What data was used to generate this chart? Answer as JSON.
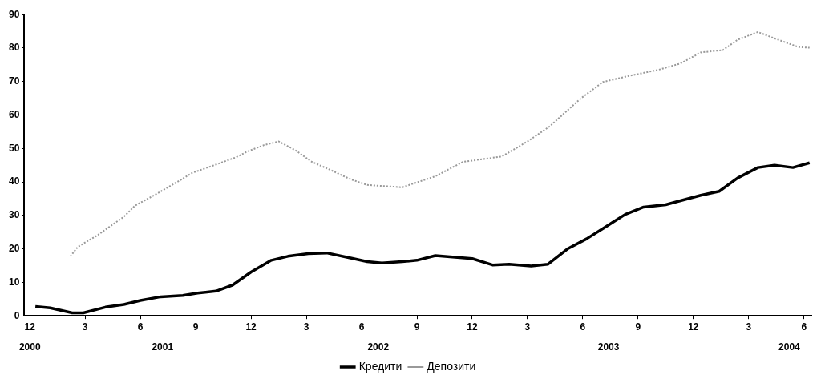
{
  "chart_data": {
    "type": "line",
    "xlim": [
      "2000-11-22",
      "2004-06-13"
    ],
    "ylim": [
      0,
      90
    ],
    "xticks": [
      {
        "value": "2000-12-01",
        "label": "12"
      },
      {
        "value": "2001-03-01",
        "label": "3"
      },
      {
        "value": "2001-06-01",
        "label": "6"
      },
      {
        "value": "2001-09-01",
        "label": "9"
      },
      {
        "value": "2001-12-01",
        "label": "12"
      },
      {
        "value": "2002-03-01",
        "label": "3"
      },
      {
        "value": "2002-06-01",
        "label": "6"
      },
      {
        "value": "2002-09-01",
        "label": "9"
      },
      {
        "value": "2002-12-01",
        "label": "12"
      },
      {
        "value": "2003-03-01",
        "label": "3"
      },
      {
        "value": "2003-06-01",
        "label": "6"
      },
      {
        "value": "2003-09-01",
        "label": "9"
      },
      {
        "value": "2003-12-01",
        "label": "12"
      },
      {
        "value": "2004-03-01",
        "label": "3"
      },
      {
        "value": "2004-06-01",
        "label": "6"
      }
    ],
    "x2lim": [
      "2000-11-22",
      "2004-06-13"
    ],
    "x2ticks": [
      {
        "value": "2000-12-01",
        "label": "2000"
      },
      {
        "value": "2001-07-07",
        "label": "2001"
      },
      {
        "value": "2002-06-28",
        "label": "2002"
      },
      {
        "value": "2003-07-13",
        "label": "2003"
      },
      {
        "value": "2004-05-07",
        "label": "2004"
      }
    ],
    "yticks": [
      0,
      10,
      20,
      30,
      40,
      50,
      60,
      70,
      80,
      90
    ],
    "grid": false,
    "legend": "bottom",
    "marker": "none",
    "series": [
      {
        "name": "Кредити",
        "color": "#000000",
        "line_style": "solid",
        "x": [
          "2000-12-10",
          "2001-01-04",
          "2001-02-10",
          "2001-02-28",
          "2001-04-04",
          "2001-05-04",
          "2001-06-01",
          "2001-07-04",
          "2001-08-10",
          "2001-09-04",
          "2001-10-04",
          "2001-11-01",
          "2001-12-01",
          "2002-01-04",
          "2002-02-01",
          "2002-03-04",
          "2002-04-04",
          "2002-05-10",
          "2002-06-10",
          "2002-07-04",
          "2002-08-07",
          "2002-09-01",
          "2002-10-01",
          "2002-12-01",
          "2003-01-04",
          "2003-02-01",
          "2003-03-07",
          "2003-04-04",
          "2003-05-07",
          "2003-06-07",
          "2003-07-10",
          "2003-08-10",
          "2003-09-10",
          "2003-10-16",
          "2003-11-10",
          "2003-12-13",
          "2004-01-13",
          "2004-02-13",
          "2004-03-16",
          "2004-04-13",
          "2004-05-13",
          "2004-06-10"
        ],
        "values": [
          2.8,
          2.4,
          0.9,
          0.9,
          2.6,
          3.4,
          4.6,
          5.7,
          6.1,
          6.8,
          7.4,
          9.2,
          13.1,
          16.6,
          17.8,
          18.6,
          18.8,
          17.4,
          16.2,
          15.8,
          16.2,
          16.6,
          18.0,
          17.1,
          15.2,
          15.4,
          14.9,
          15.4,
          20.1,
          23.0,
          26.8,
          30.3,
          32.5,
          33.2,
          34.4,
          36.0,
          37.2,
          41.2,
          44.3,
          45.0,
          44.3,
          45.7
        ]
      },
      {
        "name": "Депозити",
        "color": "#999999",
        "line_style": "dotted",
        "x": [
          "2001-02-07",
          "2001-02-19",
          "2001-03-22",
          "2001-04-16",
          "2001-05-04",
          "2001-05-22",
          "2001-06-28",
          "2001-08-01",
          "2001-08-25",
          "2001-10-01",
          "2001-11-07",
          "2001-11-25",
          "2001-12-22",
          "2002-01-16",
          "2002-02-13",
          "2002-03-10",
          "2002-04-10",
          "2002-05-13",
          "2002-06-10",
          "2002-08-07",
          "2002-10-01",
          "2002-11-16",
          "2003-01-19",
          "2003-03-01",
          "2003-04-07",
          "2003-05-28",
          "2003-07-04",
          "2003-08-19",
          "2003-10-04",
          "2003-11-10",
          "2003-12-13",
          "2004-01-19",
          "2004-02-13",
          "2004-03-16",
          "2004-04-19",
          "2004-05-22",
          "2004-06-10"
        ],
        "values": [
          17.8,
          20.6,
          24.2,
          27.3,
          29.6,
          32.9,
          36.5,
          40.0,
          42.7,
          45.0,
          47.4,
          49.1,
          51.0,
          52.1,
          49.5,
          46.0,
          43.6,
          40.8,
          39.1,
          38.4,
          41.7,
          46.0,
          47.6,
          52.1,
          56.6,
          65.0,
          69.9,
          71.8,
          73.5,
          75.4,
          78.7,
          79.4,
          82.5,
          84.8,
          82.5,
          80.3,
          80.1
        ]
      }
    ]
  }
}
